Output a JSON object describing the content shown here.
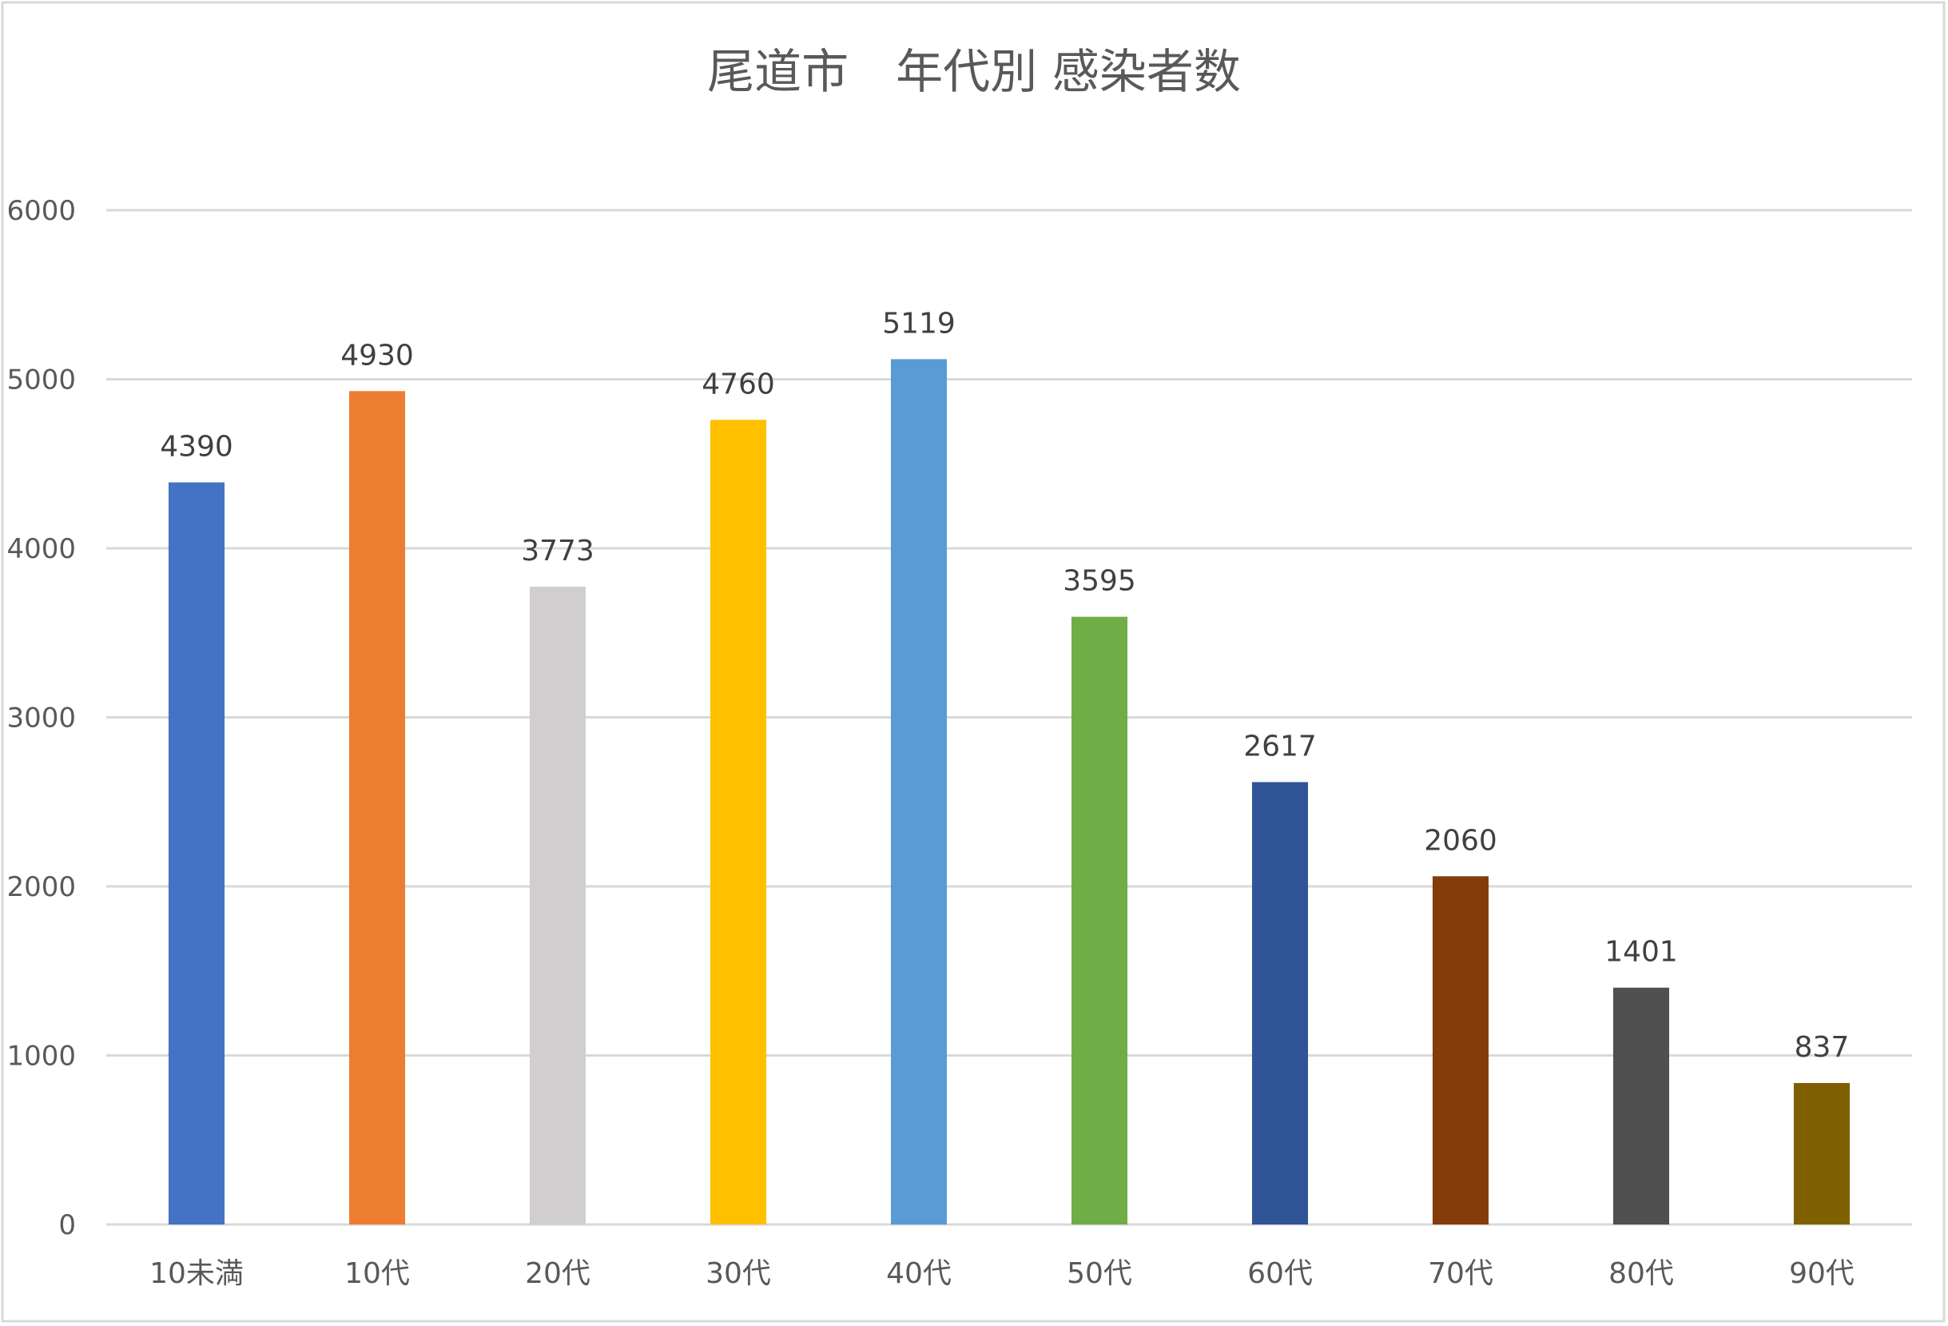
{
  "chart_data": {
    "type": "bar",
    "title": "尾道市　年代別 感染者数",
    "xlabel": "",
    "ylabel": "",
    "categories": [
      "10未満",
      "10代",
      "20代",
      "30代",
      "40代",
      "50代",
      "60代",
      "70代",
      "80代",
      "90代"
    ],
    "values": [
      4390,
      4930,
      3773,
      4760,
      5119,
      3595,
      2617,
      2060,
      1401,
      837
    ],
    "colors": [
      "#4472C4",
      "#ED7D31",
      "#D0CECE",
      "#FFC000",
      "#5B9BD5",
      "#70AD47",
      "#2F5597",
      "#843C0C",
      "#505050",
      "#7F6000"
    ],
    "ylim": [
      0,
      6000
    ],
    "yticks": [
      0,
      1000,
      2000,
      3000,
      4000,
      5000,
      6000
    ],
    "grid": true,
    "legend": "none",
    "data_labels": true
  }
}
